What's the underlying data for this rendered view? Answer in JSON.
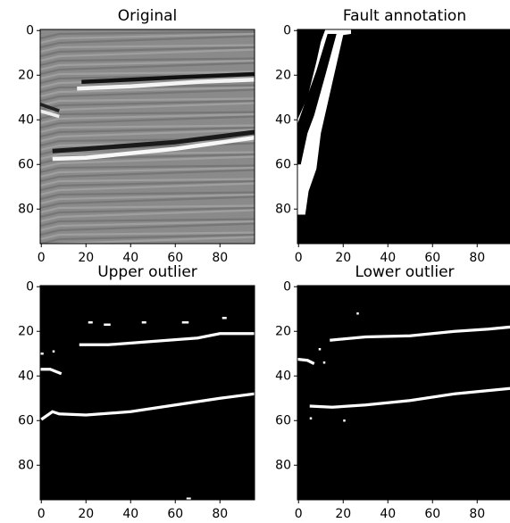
{
  "chart_data": [
    {
      "type": "image",
      "title": "Original",
      "xlim": [
        -0.5,
        95.5
      ],
      "ylim": [
        95.5,
        -0.5
      ],
      "xticks": [
        0,
        20,
        40,
        60,
        80
      ],
      "yticks": [
        0,
        20,
        40,
        60,
        80
      ]
    },
    {
      "type": "image",
      "title": "Fault annotation",
      "xlim": [
        -0.5,
        95.5
      ],
      "ylim": [
        95.5,
        -0.5
      ],
      "xticks": [
        0,
        20,
        40,
        60,
        80
      ],
      "yticks": [
        0,
        20,
        40,
        60,
        80
      ]
    },
    {
      "type": "image",
      "title": "Upper outlier",
      "xlim": [
        -0.5,
        95.5
      ],
      "ylim": [
        95.5,
        -0.5
      ],
      "xticks": [
        0,
        20,
        40,
        60,
        80
      ],
      "yticks": [
        0,
        20,
        40,
        60,
        80
      ]
    },
    {
      "type": "image",
      "title": "Lower outlier",
      "xlim": [
        -0.5,
        95.5
      ],
      "ylim": [
        95.5,
        -0.5
      ],
      "xticks": [
        0,
        20,
        40,
        60,
        80
      ],
      "yticks": [
        0,
        20,
        40,
        60,
        80
      ]
    }
  ]
}
